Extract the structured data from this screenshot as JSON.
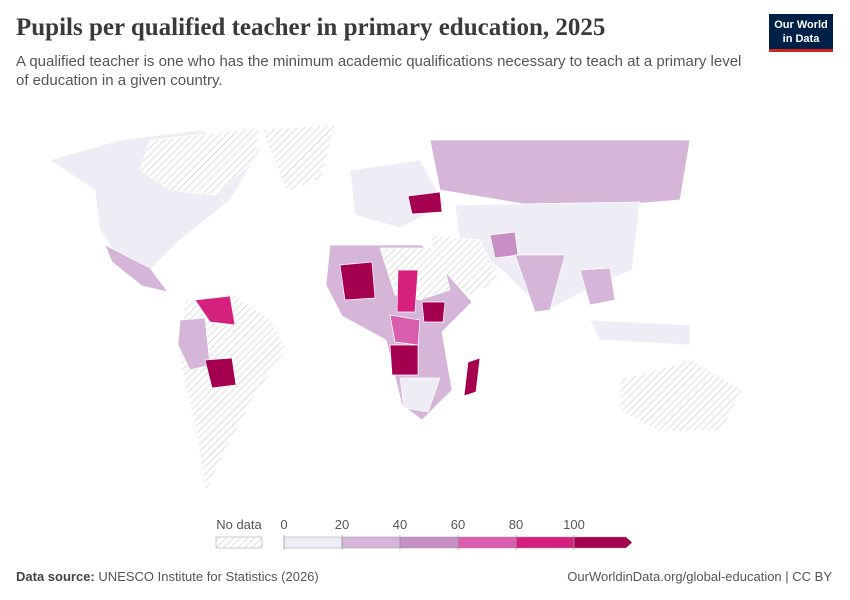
{
  "header": {
    "title": "Pupils per qualified teacher in primary education, 2025",
    "subtitle": "A qualified teacher is one who has the minimum academic qualifications necessary to teach at a primary level of education in a given country.",
    "logo": [
      "Our World",
      "in Data"
    ]
  },
  "legend": {
    "no_data": "No data",
    "ticks": [
      0,
      20,
      40,
      60,
      80,
      100
    ],
    "colors": [
      "#eeedf5",
      "#d5b6d8",
      "#c78fc4",
      "#d95eae",
      "#d6207d",
      "#a5004f"
    ]
  },
  "footer": {
    "source_label": "Data source:",
    "source": "UNESCO Institute for Statistics (2026)",
    "url": "OurWorldinData.org/global-education | CC BY"
  }
}
